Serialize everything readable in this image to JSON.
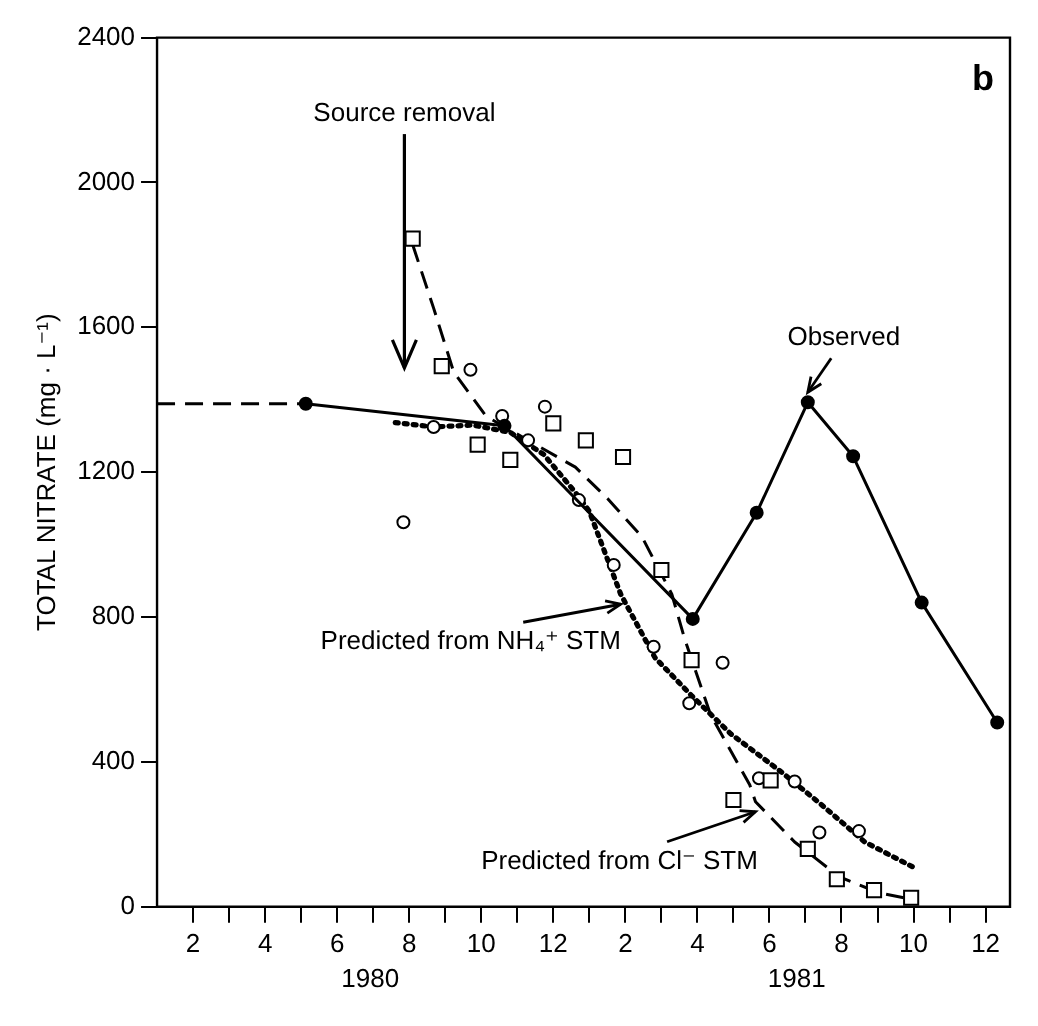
{
  "chart_data": {
    "type": "line",
    "ylabel": "TOTAL NITRATE (mg · L⁻¹)",
    "xlim": [
      "1980-01-01",
      "1981-12-22"
    ],
    "ylim": [
      0,
      2400
    ],
    "yticks": [
      0,
      400,
      800,
      1200,
      1600,
      2000,
      2400
    ],
    "xticks": [
      {
        "value": "1980-02",
        "label": "2"
      },
      {
        "value": "1980-03",
        "label": null
      },
      {
        "value": "1980-04",
        "label": "4"
      },
      {
        "value": "1980-05",
        "label": null
      },
      {
        "value": "1980-06",
        "label": "6"
      },
      {
        "value": "1980-07",
        "label": null
      },
      {
        "value": "1980-08",
        "label": "8"
      },
      {
        "value": "1980-09",
        "label": null
      },
      {
        "value": "1980-10",
        "label": "10"
      },
      {
        "value": "1980-11",
        "label": null
      },
      {
        "value": "1980-12",
        "label": "12"
      },
      {
        "value": "1981-01",
        "label": null
      },
      {
        "value": "1981-02",
        "label": "2"
      },
      {
        "value": "1981-03",
        "label": null
      },
      {
        "value": "1981-04",
        "label": "4"
      },
      {
        "value": "1981-05",
        "label": null
      },
      {
        "value": "1981-06",
        "label": "6"
      },
      {
        "value": "1981-07",
        "label": null
      },
      {
        "value": "1981-08",
        "label": "8"
      },
      {
        "value": "1981-09",
        "label": null
      },
      {
        "value": "1981-10",
        "label": "10"
      },
      {
        "value": "1981-11",
        "label": null
      },
      {
        "value": "1981-12",
        "label": "12"
      }
    ],
    "grid": false,
    "legend": false,
    "series": [
      {
        "color": "#000000",
        "line_style": "dashed",
        "x": [
          "1980-01-01",
          "1980-05-05"
        ],
        "values": [
          1389,
          1389
        ]
      },
      {
        "color": "#000000",
        "line_style": "solid",
        "marker": "circle",
        "x": [
          "1980-05-05",
          "1980-10-21",
          "1981-03-28",
          "1981-05-21",
          "1981-07-03",
          "1981-08-11",
          "1981-10-08",
          "1981-12-11"
        ],
        "values": [
          1389,
          1328,
          795,
          1088,
          1393,
          1244,
          840,
          509
        ]
      },
      {
        "type": "scatter",
        "color": "#000000",
        "marker": "square",
        "x": [
          "1980-08-04",
          "1980-08-29",
          "1980-09-28",
          "1980-10-26",
          "1980-12-01",
          "1980-12-29",
          "1981-01-30",
          "1981-03-01",
          "1981-03-27",
          "1981-05-01",
          "1981-06-02",
          "1981-07-03",
          "1981-07-28",
          "1981-08-29",
          "1981-09-29"
        ],
        "values": [
          1845,
          1493,
          1276,
          1234,
          1335,
          1288,
          1242,
          930,
          681,
          295,
          349,
          160,
          76,
          46,
          25
        ]
      },
      {
        "type": "scatter",
        "color": "#000000",
        "marker": "circle",
        "x": [
          "1980-07-27",
          "1980-08-22",
          "1980-09-22",
          "1980-10-19",
          "1980-11-10",
          "1980-11-24",
          "1980-12-23",
          "1981-01-22",
          "1981-02-23",
          "1981-03-25",
          "1981-04-22",
          "1981-05-23",
          "1981-06-22",
          "1981-07-13",
          "1981-08-16"
        ],
        "values": [
          1062,
          1325,
          1483,
          1355,
          1288,
          1381,
          1123,
          944,
          718,
          562,
          674,
          355,
          346,
          205,
          209
        ]
      },
      {
        "color": "#000000",
        "line_style": "dashed",
        "x": [
          "1980-08-04",
          "1980-08-22",
          "1980-09-08",
          "1980-10-05",
          "1980-11-12",
          "1980-12-20",
          "1981-01-17",
          "1981-02-14",
          "1981-03-10",
          "1981-03-21",
          "1981-04-12",
          "1981-05-15",
          "1981-05-20",
          "1981-06-22",
          "1981-07-30",
          "1981-09-02",
          "1981-09-29"
        ],
        "values": [
          1828,
          1653,
          1477,
          1355,
          1284,
          1214,
          1126,
          1021,
          863,
          740,
          530,
          337,
          290,
          179,
          83,
          39,
          21
        ]
      },
      {
        "color": "#000000",
        "line_style": "dotted",
        "x": [
          "1980-07-20",
          "1980-08-22",
          "1980-09-24",
          "1980-10-26",
          "1980-11-23",
          "1980-12-20",
          "1981-01-01",
          "1981-01-28",
          "1981-02-24",
          "1981-03-27",
          "1981-04-29",
          "1981-06-11",
          "1981-07-14",
          "1981-08-21",
          "1981-10-01"
        ],
        "values": [
          1337,
          1325,
          1330,
          1310,
          1249,
          1144,
          1092,
          863,
          688,
          583,
          477,
          372,
          284,
          179,
          109
        ]
      }
    ],
    "annotations": [
      "Source removal",
      {
        "text": "Observed",
        "x": "1981-07-03",
        "y": 1393
      },
      {
        "text": "Predicted from NH₄⁺ STM",
        "x": "1981-01-28",
        "y": 863
      },
      {
        "text": "Predicted from Cl⁻ STM",
        "x": "1981-05-20",
        "y": 290
      },
      "b",
      "1980",
      "1981"
    ]
  }
}
